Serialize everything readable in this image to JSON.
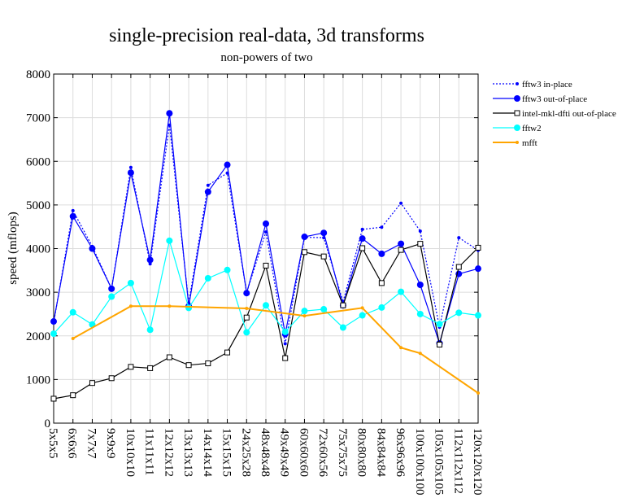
{
  "chart_data": {
    "type": "line",
    "title": "single-precision real-data, 3d transforms",
    "subtitle": "non-powers of two",
    "xlabel": "",
    "ylabel": "speed (mflops)",
    "ylim": [
      0,
      8000
    ],
    "yticks": [
      0,
      1000,
      2000,
      3000,
      4000,
      5000,
      6000,
      7000,
      8000
    ],
    "grid": true,
    "legend_position": "right",
    "categories": [
      "5x5x5",
      "6x6x6",
      "7x7x7",
      "9x9x9",
      "10x10x10",
      "11x11x11",
      "12x12x12",
      "13x13x13",
      "14x14x14",
      "15x15x15",
      "24x25x28",
      "48x48x48",
      "49x49x49",
      "60x60x60",
      "72x60x56",
      "75x75x75",
      "80x80x80",
      "84x84x84",
      "96x96x96",
      "100x100x100",
      "105x105x105",
      "112x112x112",
      "120x120x120"
    ],
    "series": [
      {
        "name": "fftw3 in-place",
        "color": "#0000ff",
        "style": "dotted",
        "marker": "small-dot",
        "values": [
          2300,
          4870,
          4050,
          3080,
          5860,
          3650,
          6830,
          2750,
          5450,
          5730,
          2990,
          4380,
          1820,
          4260,
          4250,
          2780,
          4440,
          4490,
          5040,
          4400,
          2200,
          4250,
          3960
        ]
      },
      {
        "name": "fftw3 out-of-place",
        "color": "#0000ff",
        "style": "solid",
        "marker": "dot",
        "values": [
          2330,
          4740,
          4000,
          3080,
          5740,
          3740,
          7100,
          2680,
          5300,
          5920,
          2980,
          4570,
          2040,
          4270,
          4360,
          2700,
          4230,
          3880,
          4110,
          3170,
          1830,
          3420,
          3540
        ]
      },
      {
        "name": "intel-mkl-dfti out-of-place",
        "color": "#000000",
        "style": "solid",
        "marker": "open-square",
        "values": [
          560,
          640,
          920,
          1030,
          1290,
          1260,
          1510,
          1330,
          1370,
          1620,
          2420,
          3610,
          1490,
          3920,
          3820,
          2700,
          4010,
          3210,
          3970,
          4110,
          1800,
          3580,
          4020
        ]
      },
      {
        "name": "fftw2",
        "color": "#00ffff",
        "style": "solid",
        "marker": "dot",
        "values": [
          2050,
          2540,
          2260,
          2900,
          3210,
          2140,
          4180,
          2640,
          3320,
          3510,
          2080,
          2700,
          2090,
          2570,
          2610,
          2190,
          2470,
          2650,
          3010,
          2500,
          2270,
          2530,
          2470
        ]
      },
      {
        "name": "mfft",
        "color": "#ffa500",
        "style": "solid",
        "marker": "small-dot",
        "values": [
          null,
          1940,
          null,
          null,
          2680,
          null,
          2680,
          null,
          null,
          null,
          2630,
          null,
          null,
          2460,
          null,
          null,
          2640,
          null,
          1730,
          1600,
          null,
          null,
          690
        ]
      }
    ]
  }
}
